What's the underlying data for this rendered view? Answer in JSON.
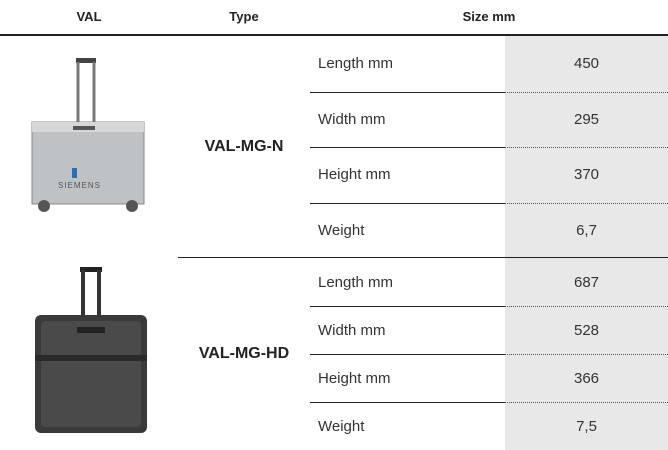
{
  "header": {
    "val": "VAL",
    "type": "Type",
    "size": "Size mm"
  },
  "products": [
    {
      "type": "VAL-MG-N",
      "specs": [
        {
          "label": "Length mm",
          "value": "450"
        },
        {
          "label": "Width mm",
          "value": "295"
        },
        {
          "label": "Height mm",
          "value": "370"
        },
        {
          "label": "Weight",
          "value": "6,7"
        }
      ]
    },
    {
      "type": "VAL-MG-HD",
      "specs": [
        {
          "label": "Length mm",
          "value": "687"
        },
        {
          "label": "Width mm",
          "value": "528"
        },
        {
          "label": "Height mm",
          "value": "366"
        },
        {
          "label": "Weight",
          "value": "7,5"
        }
      ]
    }
  ]
}
